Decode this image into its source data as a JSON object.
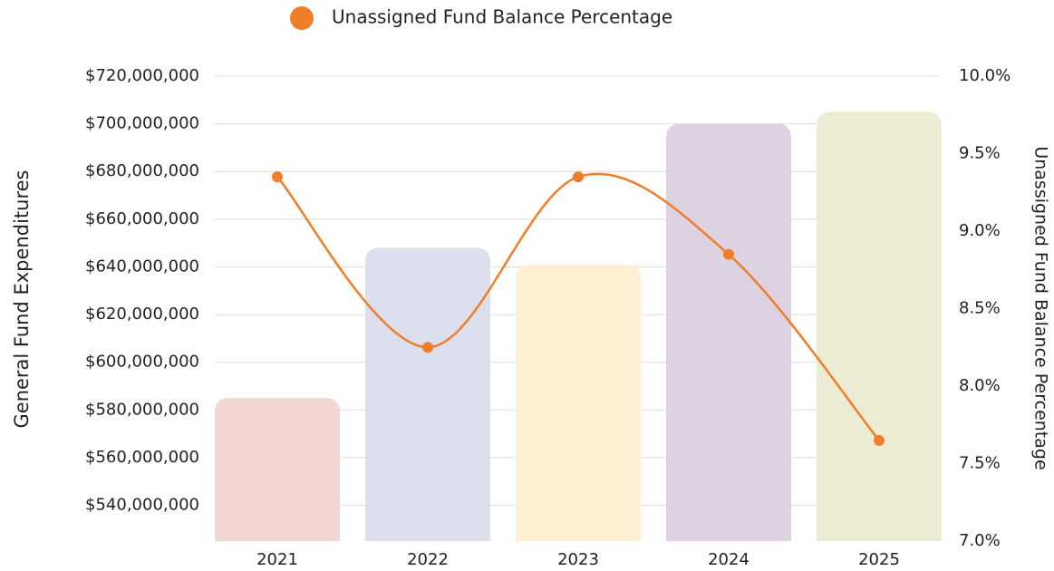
{
  "chart_data": {
    "type": "bar-line",
    "categories": [
      "2021",
      "2022",
      "2023",
      "2024",
      "2025"
    ],
    "y_label": "General Fund Expenditures",
    "y2_label": "Unassigned Fund Balance Percentage",
    "ylim": [
      525000000,
      720000000
    ],
    "yticks": [
      {
        "value": 540000000,
        "label": "$540,000,000"
      },
      {
        "value": 560000000,
        "label": "$560,000,000"
      },
      {
        "value": 580000000,
        "label": "$580,000,000"
      },
      {
        "value": 600000000,
        "label": "$600,000,000"
      },
      {
        "value": 620000000,
        "label": "$620,000,000"
      },
      {
        "value": 640000000,
        "label": "$640,000,000"
      },
      {
        "value": 660000000,
        "label": "$660,000,000"
      },
      {
        "value": 680000000,
        "label": "$680,000,000"
      },
      {
        "value": 700000000,
        "label": "$700,000,000"
      },
      {
        "value": 720000000,
        "label": "$720,000,000"
      }
    ],
    "y2lim": [
      7.0,
      10.0
    ],
    "y2ticks": [
      {
        "value": 7.0,
        "label": "7.0%"
      },
      {
        "value": 7.5,
        "label": "7.5%"
      },
      {
        "value": 8.0,
        "label": "8.0%"
      },
      {
        "value": 8.5,
        "label": "8.5%"
      },
      {
        "value": 9.0,
        "label": "9.0%"
      },
      {
        "value": 9.5,
        "label": "9.5%"
      },
      {
        "value": 10.0,
        "label": "10.0%"
      }
    ],
    "grid": true,
    "series": [
      {
        "type": "bar",
        "colors": [
          "#f1d6d3",
          "#dcdfee",
          "#fdf0d2",
          "#ddd2e1",
          "#ececd4"
        ],
        "values": [
          585000000,
          648000000,
          641000000,
          700000000,
          705000000
        ]
      },
      {
        "type": "line",
        "name": "Unassigned Fund Balance Percentage",
        "color": "#f07e26",
        "axis": "y2",
        "values": [
          9.35,
          8.25,
          9.35,
          8.85,
          7.65
        ]
      }
    ]
  }
}
